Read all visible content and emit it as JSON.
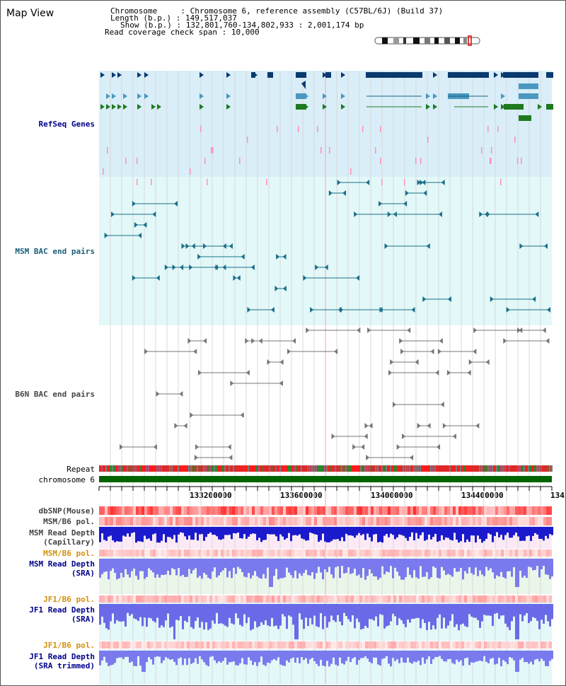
{
  "view_title": "Map View",
  "info": {
    "chromosome_label": "Chromosome",
    "chromosome_value": "Chromosome 6, reference assembly (C57BL/6J) (Build 37)",
    "length_label": "Length (b.p.)",
    "length_value": "149,517,037",
    "show_label": "Show (b.p.)",
    "show_value": "132,801,760-134,802,933 : 2,001,174 bp",
    "span_label": "Read coverage check span",
    "span_value": "10,000"
  },
  "tracks": {
    "refseq": "RefSeq Genes",
    "msm_bac": "MSM BAC end pairs",
    "b6n_bac": "B6N BAC end pairs",
    "repeat": "Repeat",
    "chromosome": "chromosome 6",
    "dbsnp": "dbSNP(Mouse)",
    "msm_b6_pol1": "MSM/B6 pol.",
    "msm_depth_cap_1": "MSM Read Depth",
    "msm_depth_cap_2": "(Capillary)",
    "msm_b6_pol2": "MSM/B6 pol.",
    "msm_depth_sra_1": "MSM Read Depth",
    "msm_depth_sra_2": "(SRA)",
    "jf1_b6_pol1": "JF1/B6 pol.",
    "jf1_depth_sra_1": "JF1 Read Depth",
    "jf1_depth_sra_2": "(SRA)",
    "jf1_b6_pol2": "JF1/B6 pol.",
    "jf1_depth_trim_1": "JF1 Read Depth",
    "jf1_depth_trim_2": "(SRA trimmed)"
  },
  "axis_ticks": [
    "133200000",
    "133600000",
    "134000000",
    "134400000",
    "134"
  ],
  "colors": {
    "refseq_bg": "#d9eef8",
    "msm_bg": "#e3f8f8",
    "gene_navy": "#0a3a6e",
    "gene_blue": "#4a98c0",
    "gene_green": "#1f7a1f",
    "chrom_bar": "#006400",
    "depth_blue": "#0000e0",
    "repeat_red": "#e02020"
  }
}
